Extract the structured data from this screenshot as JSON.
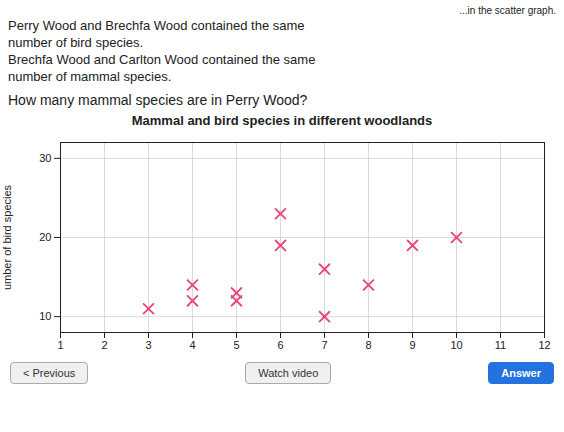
{
  "chart_data": {
    "type": "scatter",
    "title": "Mammal and bird species in different woodlands",
    "ylabel": "umber of bird species",
    "x": [
      3,
      4,
      4,
      5,
      5,
      6,
      6,
      7,
      7,
      8,
      9,
      10
    ],
    "values": [
      11,
      12,
      14,
      13,
      12,
      19,
      23,
      16,
      10,
      14,
      19,
      20
    ],
    "color": "#e8457a",
    "marker": "x",
    "xlim": [
      1,
      12
    ],
    "xticks": [
      1,
      2,
      3,
      4,
      5,
      6,
      7,
      8,
      9,
      10,
      11,
      12
    ],
    "ylim": [
      8,
      32
    ],
    "yticks": [
      10,
      20,
      30
    ],
    "grid": true,
    "annotations": [
      "...in the scatter graph.",
      "Perry Wood and Brechfa Wood contained the same",
      "number of bird species.",
      "Brechfa Wood and Carlton Wood contained the same",
      "number of mammal species.",
      "How many mammal species are in Perry Wood?",
      "< Previous",
      "Watch video",
      "Answer"
    ]
  }
}
